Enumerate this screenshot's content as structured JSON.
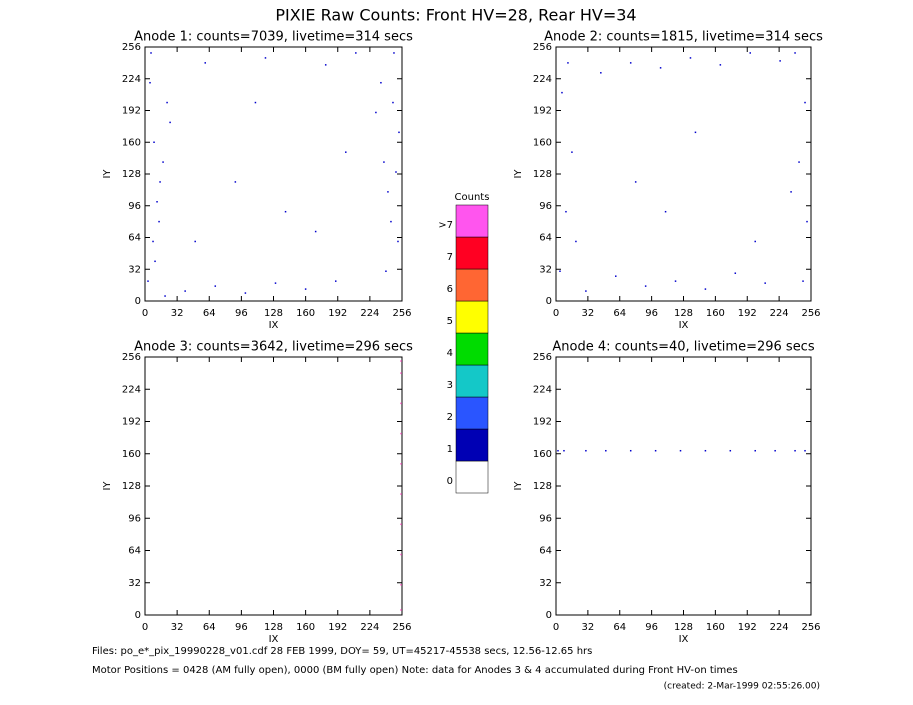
{
  "title": "PIXIE Raw Counts:  Front HV=28, Rear HV=34",
  "chart_data": [
    {
      "type": "scatter",
      "title": "Anode 1: counts=7039, livetime=314 secs",
      "xlabel": "IX",
      "ylabel": "IY",
      "xlim": [
        0,
        256
      ],
      "ylim": [
        0,
        256
      ],
      "xticks": [
        0,
        32,
        64,
        96,
        128,
        160,
        192,
        224,
        256
      ],
      "yticks": [
        0,
        32,
        64,
        96,
        128,
        160,
        192,
        224,
        256
      ],
      "color": "#0000cc",
      "x": [
        3,
        8,
        12,
        18,
        25,
        5,
        10,
        15,
        22,
        6,
        240,
        245,
        250,
        253,
        235,
        248,
        242,
        252,
        230,
        40,
        70,
        100,
        130,
        160,
        190,
        60,
        120,
        180,
        210,
        90,
        140,
        200,
        50,
        110,
        170,
        9,
        14,
        247,
        238,
        20
      ],
      "y": [
        20,
        60,
        100,
        140,
        180,
        220,
        40,
        120,
        200,
        250,
        30,
        80,
        130,
        170,
        220,
        250,
        110,
        60,
        190,
        10,
        15,
        8,
        18,
        12,
        20,
        240,
        245,
        238,
        250,
        120,
        90,
        150,
        60,
        200,
        70,
        160,
        80,
        200,
        140,
        5
      ]
    },
    {
      "type": "scatter",
      "title": "Anode 2: counts=1815, livetime=314 secs",
      "xlabel": "IX",
      "ylabel": "IY",
      "xlim": [
        0,
        256
      ],
      "ylim": [
        0,
        256
      ],
      "xticks": [
        0,
        32,
        64,
        96,
        128,
        160,
        192,
        224,
        256
      ],
      "yticks": [
        0,
        32,
        64,
        96,
        128,
        160,
        192,
        224,
        256
      ],
      "color": "#0000cc",
      "x": [
        4,
        10,
        16,
        6,
        12,
        248,
        252,
        244,
        250,
        240,
        30,
        60,
        90,
        120,
        150,
        180,
        210,
        45,
        75,
        105,
        135,
        165,
        195,
        225,
        20,
        236,
        80,
        140,
        200,
        110
      ],
      "y": [
        30,
        90,
        150,
        210,
        240,
        20,
        80,
        140,
        200,
        250,
        10,
        25,
        15,
        20,
        12,
        28,
        18,
        230,
        240,
        235,
        245,
        238,
        250,
        242,
        60,
        110,
        120,
        170,
        60,
        90
      ]
    },
    {
      "type": "scatter",
      "title": "Anode 3: counts=3642, livetime=296 secs",
      "xlabel": "IX",
      "ylabel": "IY",
      "xlim": [
        0,
        256
      ],
      "ylim": [
        0,
        256
      ],
      "xticks": [
        0,
        32,
        64,
        96,
        128,
        160,
        192,
        224,
        256
      ],
      "yticks": [
        0,
        32,
        64,
        96,
        128,
        160,
        192,
        224,
        256
      ],
      "color": "#ff66cc",
      "x": [
        255,
        255,
        255,
        255,
        255,
        255,
        255,
        255,
        255,
        255
      ],
      "y": [
        5,
        30,
        60,
        90,
        120,
        150,
        180,
        210,
        240,
        252
      ]
    },
    {
      "type": "scatter",
      "title": "Anode 4: counts=40, livetime=296 secs",
      "xlabel": "IX",
      "ylabel": "IY",
      "xlim": [
        0,
        256
      ],
      "ylim": [
        0,
        256
      ],
      "xticks": [
        0,
        32,
        64,
        96,
        128,
        160,
        192,
        224,
        256
      ],
      "yticks": [
        0,
        32,
        64,
        96,
        128,
        160,
        192,
        224,
        256
      ],
      "color": "#0000cc",
      "x": [
        2,
        8,
        30,
        50,
        75,
        100,
        125,
        150,
        175,
        200,
        220,
        240,
        250
      ],
      "y": [
        163,
        163,
        163,
        163,
        163,
        163,
        163,
        163,
        163,
        163,
        163,
        163,
        163
      ]
    },
    {
      "type": "colorbar",
      "title": "Counts",
      "categories": [
        "0",
        "1",
        "2",
        "3",
        "4",
        "5",
        "6",
        "7",
        ">7"
      ],
      "colors": [
        "#ffffff",
        "#0000b4",
        "#2a55ff",
        "#14c8c8",
        "#00dc00",
        "#ffff00",
        "#ff6633",
        "#ff0022",
        "#ff55ee"
      ]
    }
  ],
  "footer": {
    "files": "Files: po_e*_pix_19990228_v01.cdf    28 FEB 1999, DOY= 59, UT=45217-45538 secs, 12.56-12.65 hrs",
    "motor": "Motor Positions = 0428 (AM fully open), 0000 (BM fully open)    Note: data for Anodes 3 & 4 accumulated during Front HV-on times",
    "created": "(created:  2-Mar-1999 02:55:26.00)"
  }
}
